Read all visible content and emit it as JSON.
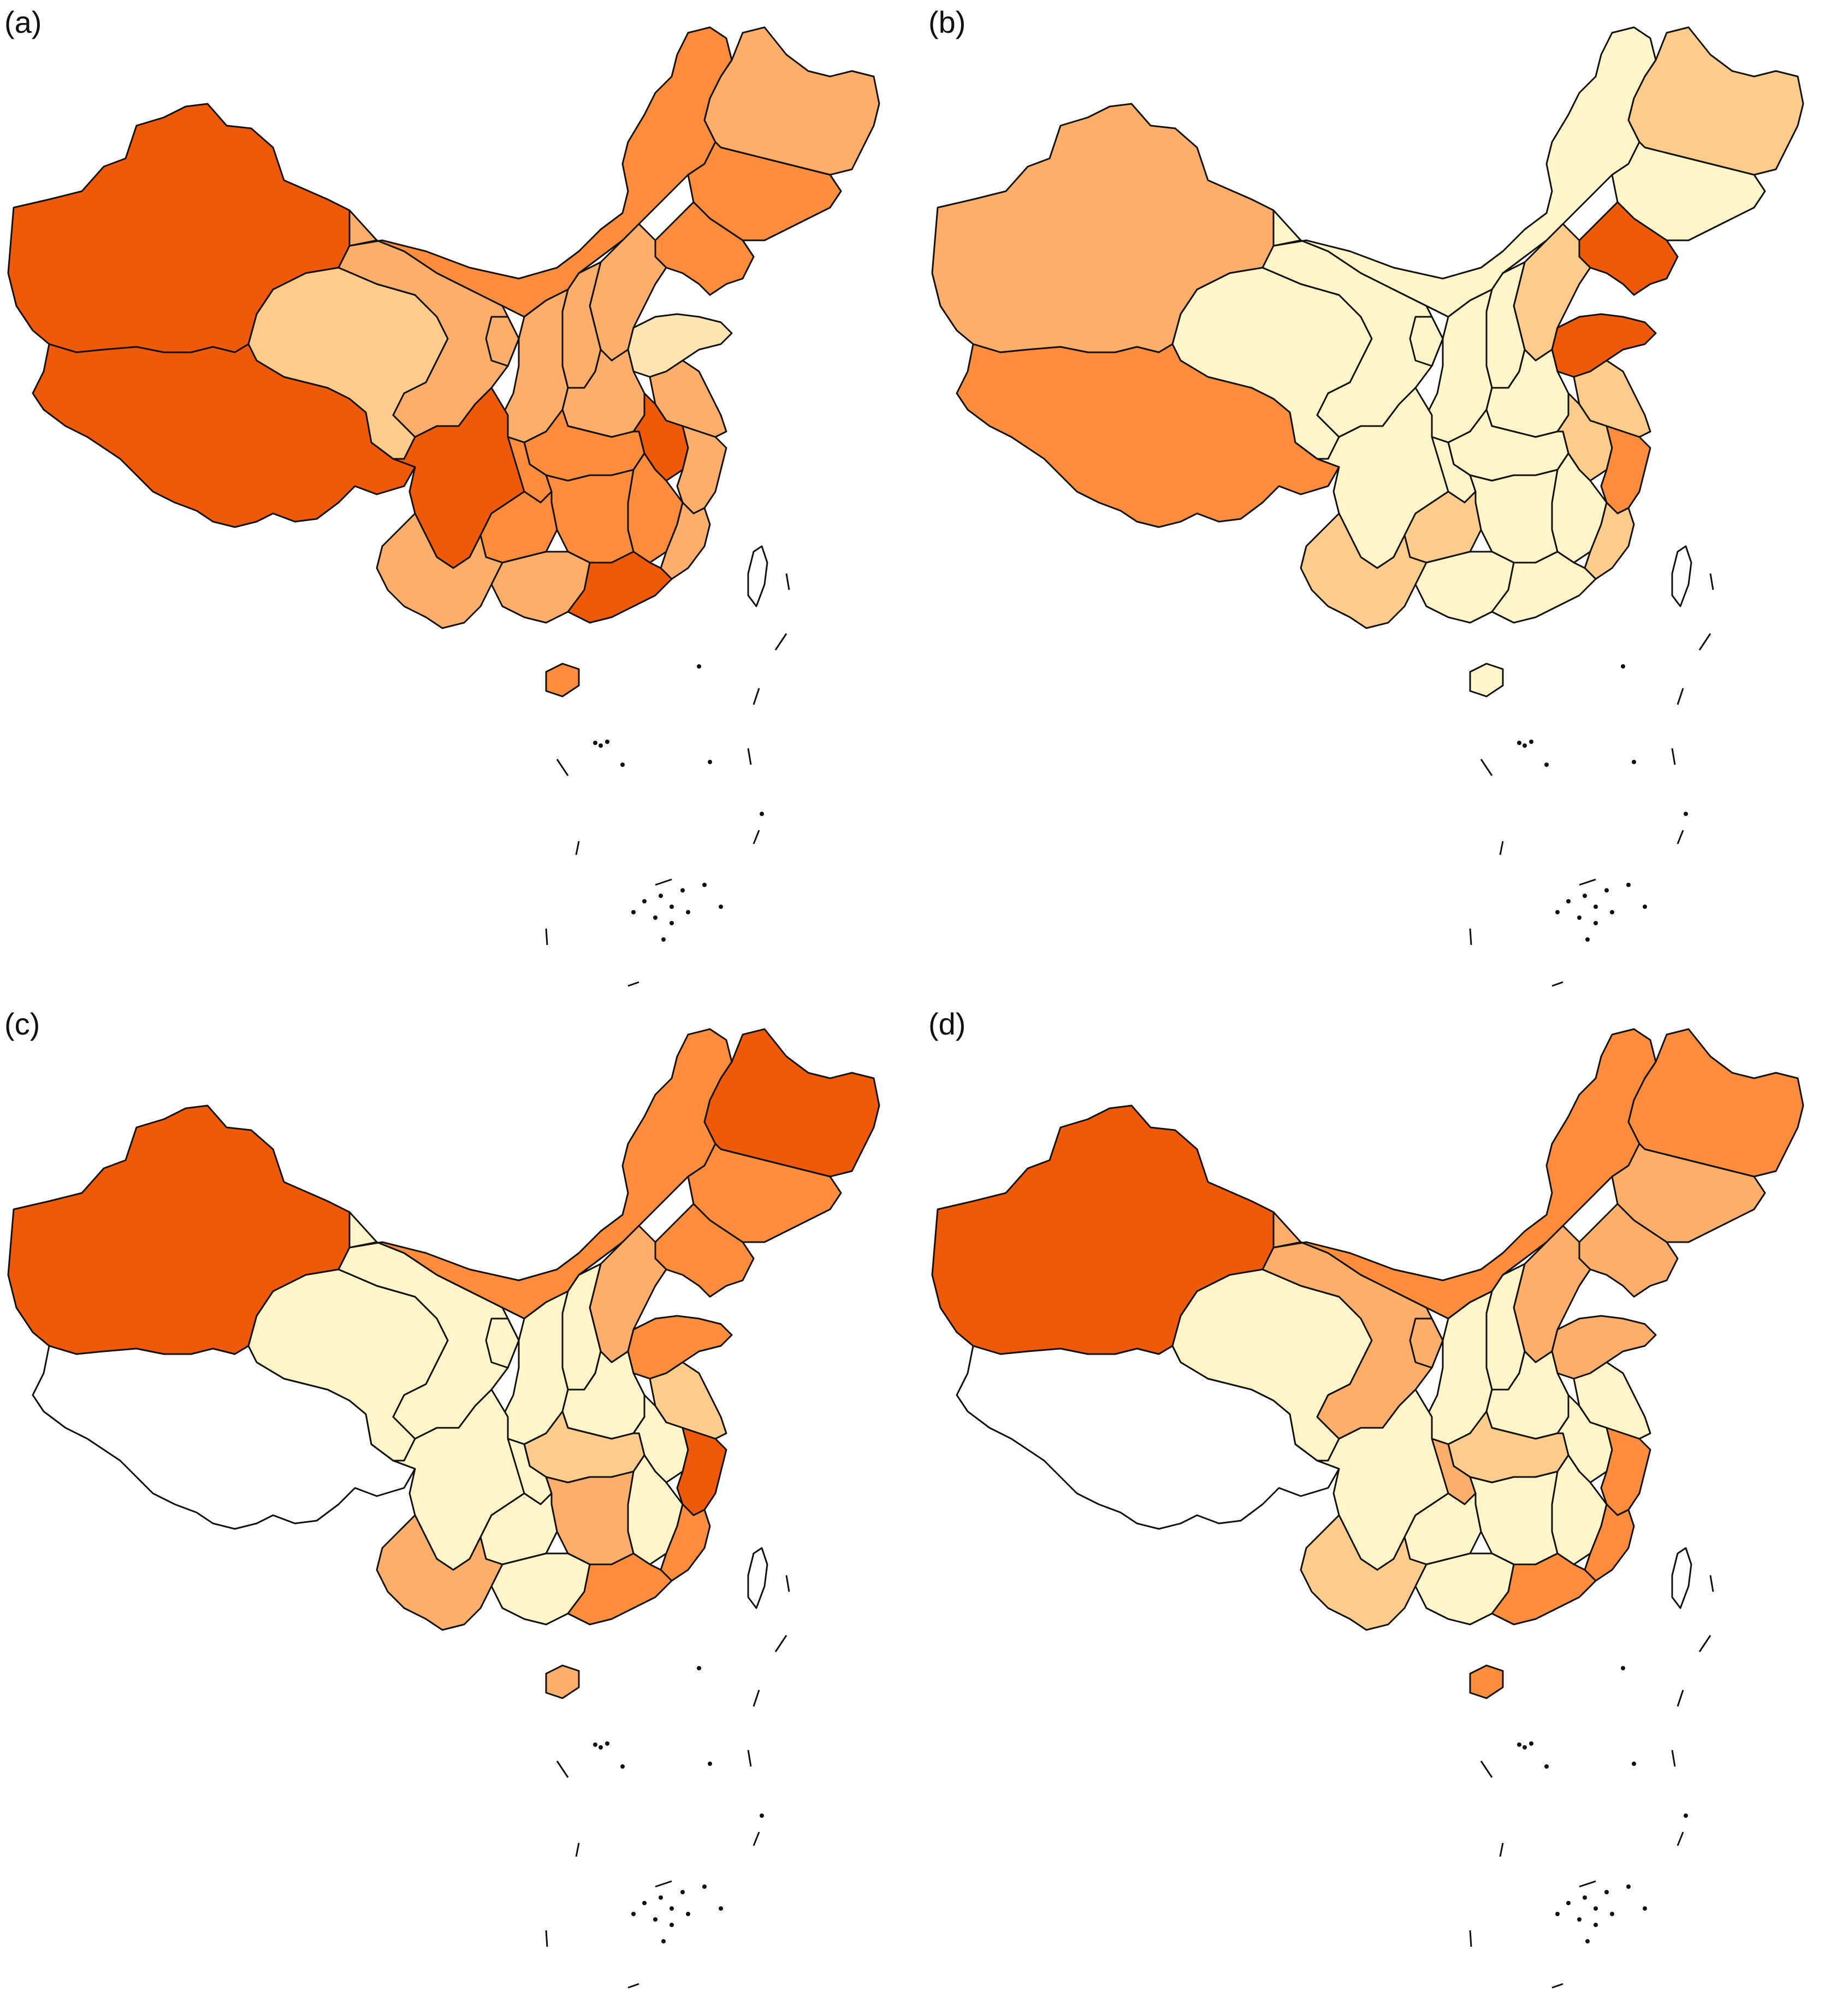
{
  "panels": [
    {
      "label": "(a)",
      "fills": {
        "xinjiang": "#ef5a0a",
        "tibet": "#ef5a0a",
        "qinghai": "#fdcc8a",
        "gansu": "#fdae6b",
        "inner_mongolia": "#fd8d3c",
        "heilongjiang": "#fdae6b",
        "jilin": "#fd8d3c",
        "liaoning": "#fd8d3c",
        "hebei": "#fdae6b",
        "shandong": "#fee4b0",
        "henan": "#fdae6b",
        "shanxi": "#fdae6b",
        "shaanxi": "#fdae6b",
        "ningxia": "#fdae6b",
        "sichuan": "#ef5a0a",
        "chongqing": "#fd8d3c",
        "yunnan": "#fdae6b",
        "guizhou": "#fd8d3c",
        "guangxi": "#fdae6b",
        "guangdong": "#ef5a0a",
        "hunan": "#fd8d3c",
        "hubei": "#fd8d3c",
        "jiangxi": "#fd8d3c",
        "fujian": "#fdae6b",
        "zhejiang": "#fdae6b",
        "anhui": "#ef5a0a",
        "jiangsu": "#fdae6b",
        "hainan": "#fd8d3c",
        "taiwan": "#ffffff"
      }
    },
    {
      "label": "(b)",
      "fills": {
        "xinjiang": "#fdae6b",
        "tibet": "#fd8d3c",
        "qinghai": "#fff5c8",
        "gansu": "#fff5c8",
        "inner_mongolia": "#fff5c8",
        "heilongjiang": "#fdcc8a",
        "jilin": "#fff5c8",
        "liaoning": "#ef5a0a",
        "hebei": "#fdcc8a",
        "shandong": "#ef5a0a",
        "henan": "#fff5c8",
        "shanxi": "#fff5c8",
        "shaanxi": "#fff5c8",
        "ningxia": "#fff5c8",
        "sichuan": "#fff5c8",
        "chongqing": "#fff5c8",
        "yunnan": "#fdcc8a",
        "guizhou": "#fdcc8a",
        "guangxi": "#fff5c8",
        "guangdong": "#fff5c8",
        "hunan": "#fff5c8",
        "hubei": "#fff5c8",
        "jiangxi": "#fff5c8",
        "fujian": "#fdcc8a",
        "zhejiang": "#fd8d3c",
        "anhui": "#fdcc8a",
        "jiangsu": "#fdcc8a",
        "hainan": "#fff5c8",
        "taiwan": "#ffffff"
      }
    },
    {
      "label": "(c)",
      "fills": {
        "xinjiang": "#ef5a0a",
        "tibet": "#ffffff",
        "qinghai": "#fff5c8",
        "gansu": "#fff5c8",
        "inner_mongolia": "#fd8d3c",
        "heilongjiang": "#ef5a0a",
        "jilin": "#fd8d3c",
        "liaoning": "#fd8d3c",
        "hebei": "#fdae6b",
        "shandong": "#fd8d3c",
        "henan": "#fff5c8",
        "shanxi": "#fff5c8",
        "shaanxi": "#fff5c8",
        "ningxia": "#fff5c8",
        "sichuan": "#fff5c8",
        "chongqing": "#fff5c8",
        "yunnan": "#fdae6b",
        "guizhou": "#fff5c8",
        "guangxi": "#fff5c8",
        "guangdong": "#fd8d3c",
        "hunan": "#fdae6b",
        "hubei": "#fdcc8a",
        "jiangxi": "#fff5c8",
        "fujian": "#fd8d3c",
        "zhejiang": "#ef5a0a",
        "anhui": "#fff5c8",
        "jiangsu": "#fdcc8a",
        "hainan": "#fdae6b",
        "taiwan": "#ffffff"
      }
    },
    {
      "label": "(d)",
      "fills": {
        "xinjiang": "#ef5a0a",
        "tibet": "#ffffff",
        "qinghai": "#fff5c8",
        "gansu": "#fdae6b",
        "inner_mongolia": "#fd8d3c",
        "heilongjiang": "#fd8d3c",
        "jilin": "#fdae6b",
        "liaoning": "#fdae6b",
        "hebei": "#fdae6b",
        "shandong": "#fdae6b",
        "henan": "#fff5c8",
        "shanxi": "#fff5c8",
        "shaanxi": "#fff5c8",
        "ningxia": "#fdae6b",
        "sichuan": "#fff5c8",
        "chongqing": "#fdae6b",
        "yunnan": "#fdcc8a",
        "guizhou": "#fff5c8",
        "guangxi": "#fff5c8",
        "guangdong": "#fd8d3c",
        "hunan": "#fff5c8",
        "hubei": "#fdcc8a",
        "jiangxi": "#fff5c8",
        "fujian": "#fd8d3c",
        "zhejiang": "#fd8d3c",
        "anhui": "#fff5c8",
        "jiangsu": "#fff5c8",
        "hainan": "#fd8d3c",
        "taiwan": "#ffffff"
      }
    }
  ]
}
